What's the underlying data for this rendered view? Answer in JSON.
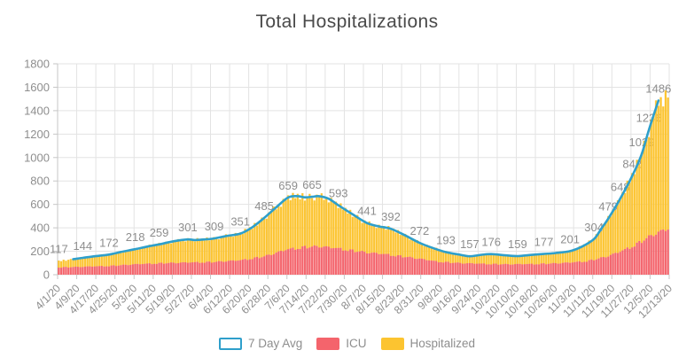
{
  "title": "Total Hospitalizations",
  "legend": {
    "items": [
      {
        "label": "7 Day Avg",
        "type": "line",
        "color": "#2E9FCB"
      },
      {
        "label": "ICU",
        "type": "bar",
        "color": "#F4646C"
      },
      {
        "label": "Hospitalized",
        "type": "bar",
        "color": "#FCC430"
      }
    ]
  },
  "colors": {
    "line": "#2E9FCB",
    "icu": "#F4646C",
    "hospitalized": "#FCC430",
    "grid": "#E3E3E3",
    "axis": "#C6C6C6",
    "tick_text": "#8E8E8E",
    "label_text": "#8E8E8E",
    "title_text": "#4A4A4A",
    "background": "#FFFFFF"
  },
  "chart_data": {
    "type": "bar",
    "subtype": "daily-stacked-bars-with-7-day-average-line",
    "title": "Total Hospitalizations",
    "x_start_date": "4/1/20",
    "days": 256,
    "grid": true,
    "legend_position": "bottom",
    "y_axis": {
      "min": 0,
      "max": 1800,
      "step": 200
    },
    "x_tick_labels": [
      "4/1/20",
      "4/9/20",
      "4/17/20",
      "4/25/20",
      "5/3/20",
      "5/11/20",
      "5/19/20",
      "5/27/20",
      "6/4/20",
      "6/12/20",
      "6/20/20",
      "6/28/20",
      "7/6/20",
      "7/14/20",
      "7/22/20",
      "7/30/20",
      "8/7/20",
      "8/15/20",
      "8/23/20",
      "8/31/20",
      "9/8/20",
      "9/16/20",
      "9/24/20",
      "10/2/20",
      "10/10/20",
      "10/18/20",
      "10/26/20",
      "11/3/20",
      "11/11/20",
      "11/19/20",
      "11/27/20",
      "12/5/20",
      "12/13/20"
    ],
    "avg_point_labels": [
      {
        "day": 0,
        "date": "4/1/20",
        "value": 117
      },
      {
        "day": 10,
        "date": "4/11/20",
        "value": 144
      },
      {
        "day": 21,
        "date": "4/22/20",
        "value": 172
      },
      {
        "day": 32,
        "date": "5/3/20",
        "value": 218
      },
      {
        "day": 42,
        "date": "5/13/20",
        "value": 259
      },
      {
        "day": 54,
        "date": "5/25/20",
        "value": 301
      },
      {
        "day": 65,
        "date": "6/5/20",
        "value": 309
      },
      {
        "day": 76,
        "date": "6/16/20",
        "value": 351
      },
      {
        "day": 86,
        "date": "6/26/20",
        "value": 485
      },
      {
        "day": 96,
        "date": "7/6/20",
        "value": 659
      },
      {
        "day": 106,
        "date": "7/16/20",
        "value": 665
      },
      {
        "day": 117,
        "date": "7/27/20",
        "value": 593
      },
      {
        "day": 129,
        "date": "8/8/20",
        "value": 441
      },
      {
        "day": 139,
        "date": "8/18/20",
        "value": 392
      },
      {
        "day": 151,
        "date": "8/30/20",
        "value": 272
      },
      {
        "day": 162,
        "date": "9/10/20",
        "value": 193
      },
      {
        "day": 172,
        "date": "9/20/20",
        "value": 157
      },
      {
        "day": 181,
        "date": "9/29/20",
        "value": 176
      },
      {
        "day": 192,
        "date": "10/10/20",
        "value": 159
      },
      {
        "day": 203,
        "date": "10/21/20",
        "value": 177
      },
      {
        "day": 214,
        "date": "11/2/20",
        "value": 201
      },
      {
        "day": 224,
        "date": "11/12/20",
        "value": 304
      },
      {
        "day": 230,
        "date": "11/18/20",
        "value": 479
      },
      {
        "day": 235,
        "date": "11/23/20",
        "value": 648
      },
      {
        "day": 240,
        "date": "11/28/20",
        "value": 842
      },
      {
        "day": 244,
        "date": "12/2/20",
        "value": 1029
      },
      {
        "day": 247,
        "date": "12/5/20",
        "value": 1236
      },
      {
        "day": 251,
        "date": "12/9/20",
        "value": 1486
      }
    ],
    "series": [
      {
        "name": "7 Day Avg",
        "style": "line",
        "color": "#2E9FCB",
        "anchor_points_day_value": [
          [
            6,
            132
          ],
          [
            10,
            144
          ],
          [
            15,
            157
          ],
          [
            21,
            172
          ],
          [
            26,
            194
          ],
          [
            32,
            218
          ],
          [
            37,
            240
          ],
          [
            42,
            259
          ],
          [
            48,
            285
          ],
          [
            54,
            301
          ],
          [
            57,
            296
          ],
          [
            61,
            301
          ],
          [
            65,
            309
          ],
          [
            70,
            330
          ],
          [
            76,
            351
          ],
          [
            81,
            405
          ],
          [
            86,
            485
          ],
          [
            91,
            575
          ],
          [
            96,
            659
          ],
          [
            100,
            670
          ],
          [
            103,
            660
          ],
          [
            106,
            665
          ],
          [
            109,
            670
          ],
          [
            113,
            648
          ],
          [
            117,
            593
          ],
          [
            123,
            515
          ],
          [
            129,
            441
          ],
          [
            134,
            412
          ],
          [
            139,
            392
          ],
          [
            145,
            335
          ],
          [
            151,
            272
          ],
          [
            156,
            232
          ],
          [
            162,
            193
          ],
          [
            168,
            170
          ],
          [
            172,
            157
          ],
          [
            177,
            170
          ],
          [
            181,
            176
          ],
          [
            186,
            167
          ],
          [
            192,
            159
          ],
          [
            197,
            168
          ],
          [
            203,
            177
          ],
          [
            208,
            185
          ],
          [
            214,
            201
          ],
          [
            219,
            240
          ],
          [
            224,
            304
          ],
          [
            227,
            390
          ],
          [
            230,
            479
          ],
          [
            235,
            648
          ],
          [
            240,
            842
          ],
          [
            244,
            1029
          ],
          [
            247,
            1236
          ],
          [
            251,
            1486
          ]
        ]
      },
      {
        "name": "ICU",
        "style": "bar-stacked-bottom",
        "color": "#F4646C",
        "anchor_points_day_value": [
          [
            0,
            62
          ],
          [
            10,
            67
          ],
          [
            21,
            74
          ],
          [
            32,
            88
          ],
          [
            42,
            97
          ],
          [
            54,
            103
          ],
          [
            65,
            108
          ],
          [
            76,
            122
          ],
          [
            86,
            155
          ],
          [
            96,
            215
          ],
          [
            103,
            235
          ],
          [
            109,
            240
          ],
          [
            117,
            222
          ],
          [
            123,
            205
          ],
          [
            129,
            188
          ],
          [
            139,
            168
          ],
          [
            145,
            152
          ],
          [
            151,
            135
          ],
          [
            158,
            112
          ],
          [
            168,
            98
          ],
          [
            178,
            92
          ],
          [
            188,
            88
          ],
          [
            198,
            90
          ],
          [
            208,
            96
          ],
          [
            214,
            102
          ],
          [
            221,
            115
          ],
          [
            224,
            128
          ],
          [
            227,
            142
          ],
          [
            230,
            158
          ],
          [
            235,
            195
          ],
          [
            240,
            240
          ],
          [
            244,
            285
          ],
          [
            247,
            320
          ],
          [
            251,
            360
          ],
          [
            255,
            385
          ]
        ]
      },
      {
        "name": "Hospitalized",
        "style": "bar-stacked-top",
        "note": "values are the stacked bar tops (total hospitalized)",
        "color": "#FCC430",
        "anchor_points_day_value": [
          [
            0,
            117
          ],
          [
            5,
            129
          ],
          [
            10,
            144
          ],
          [
            15,
            157
          ],
          [
            21,
            172
          ],
          [
            26,
            194
          ],
          [
            32,
            218
          ],
          [
            37,
            240
          ],
          [
            42,
            259
          ],
          [
            48,
            285
          ],
          [
            54,
            301
          ],
          [
            57,
            296
          ],
          [
            61,
            301
          ],
          [
            65,
            309
          ],
          [
            70,
            330
          ],
          [
            76,
            351
          ],
          [
            81,
            405
          ],
          [
            86,
            485
          ],
          [
            91,
            575
          ],
          [
            96,
            659
          ],
          [
            100,
            670
          ],
          [
            103,
            660
          ],
          [
            106,
            665
          ],
          [
            109,
            670
          ],
          [
            113,
            648
          ],
          [
            117,
            593
          ],
          [
            123,
            515
          ],
          [
            129,
            441
          ],
          [
            134,
            412
          ],
          [
            139,
            392
          ],
          [
            145,
            335
          ],
          [
            151,
            272
          ],
          [
            156,
            232
          ],
          [
            162,
            193
          ],
          [
            168,
            170
          ],
          [
            172,
            157
          ],
          [
            177,
            170
          ],
          [
            181,
            176
          ],
          [
            186,
            167
          ],
          [
            192,
            159
          ],
          [
            197,
            168
          ],
          [
            203,
            177
          ],
          [
            208,
            185
          ],
          [
            214,
            201
          ],
          [
            219,
            240
          ],
          [
            224,
            304
          ],
          [
            227,
            390
          ],
          [
            230,
            479
          ],
          [
            235,
            648
          ],
          [
            240,
            842
          ],
          [
            244,
            1029
          ],
          [
            247,
            1236
          ],
          [
            251,
            1486
          ],
          [
            255,
            1530
          ]
        ]
      }
    ],
    "bar_jitter_pattern": [
      0.03,
      -0.035,
      0.048,
      -0.042,
      0.008,
      0.04,
      -0.018,
      -0.05,
      0.022,
      -0.005,
      0.045,
      -0.03,
      0.012,
      -0.048,
      0.035,
      -0.012,
      0.028,
      -0.04,
      0.05,
      -0.022
    ],
    "icu_jitter_pattern": [
      -0.02,
      0.04,
      -0.05,
      0.01,
      0.035,
      -0.03,
      0.05,
      -0.015,
      -0.045,
      0.025,
      0.0,
      0.04,
      -0.035,
      0.015,
      0.05,
      -0.025,
      0.03,
      -0.05,
      0.02,
      0.045
    ]
  }
}
